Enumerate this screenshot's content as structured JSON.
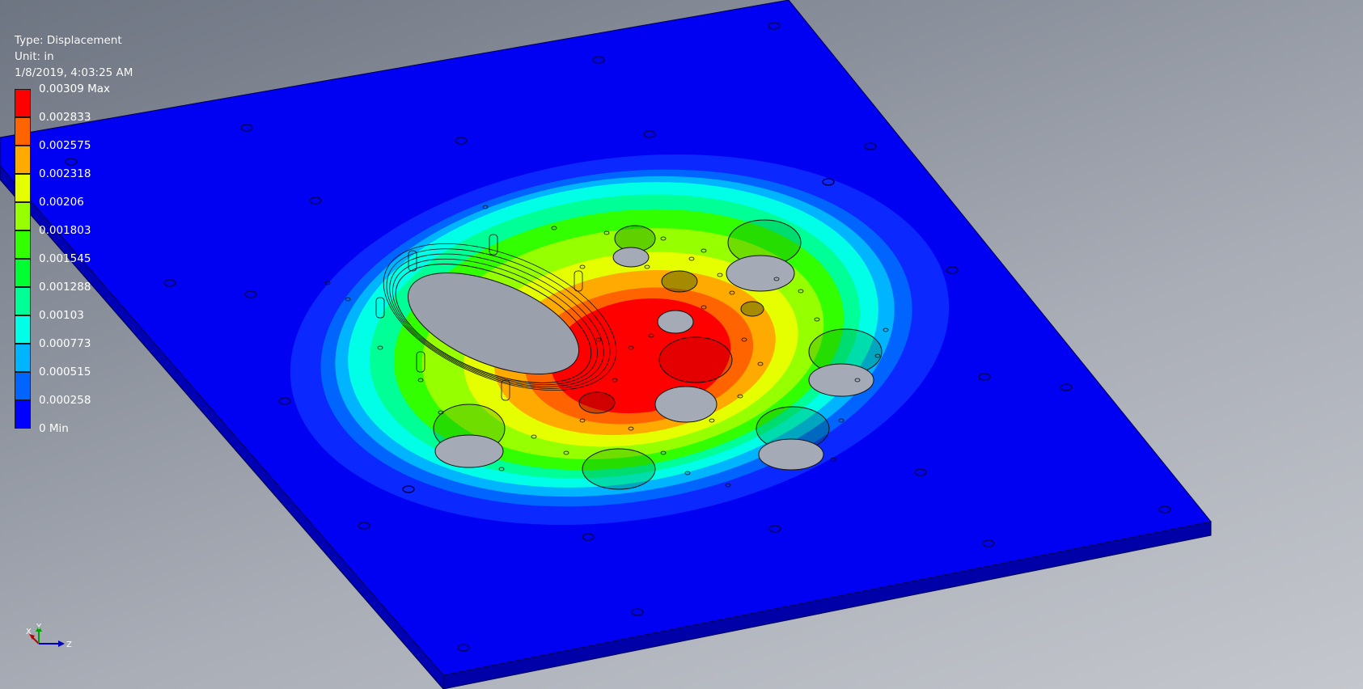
{
  "legend": {
    "type": "Type: Displacement",
    "unit": "Unit: in",
    "timestamp": "1/8/2019, 4:03:25 AM",
    "labels": [
      "0.00309 Max",
      "0.002833",
      "0.002575",
      "0.002318",
      "0.00206",
      "0.001803",
      "0.001545",
      "0.001288",
      "0.00103",
      "0.000773",
      "0.000515",
      "0.000258",
      "0 Min"
    ],
    "band_colors": [
      "#ff0000",
      "#ff6400",
      "#ffaa00",
      "#e6ff00",
      "#96ff00",
      "#32ff00",
      "#00ff32",
      "#00ff96",
      "#00ffe6",
      "#00b4ff",
      "#0064ff",
      "#0000ff"
    ]
  },
  "triad": {
    "x_label": "X",
    "y_label": "Y",
    "z_label": "Z"
  },
  "colors": {
    "plate_top": "#0000f0",
    "plate_side": "#0000b0",
    "plate_edge": "#00008a"
  }
}
